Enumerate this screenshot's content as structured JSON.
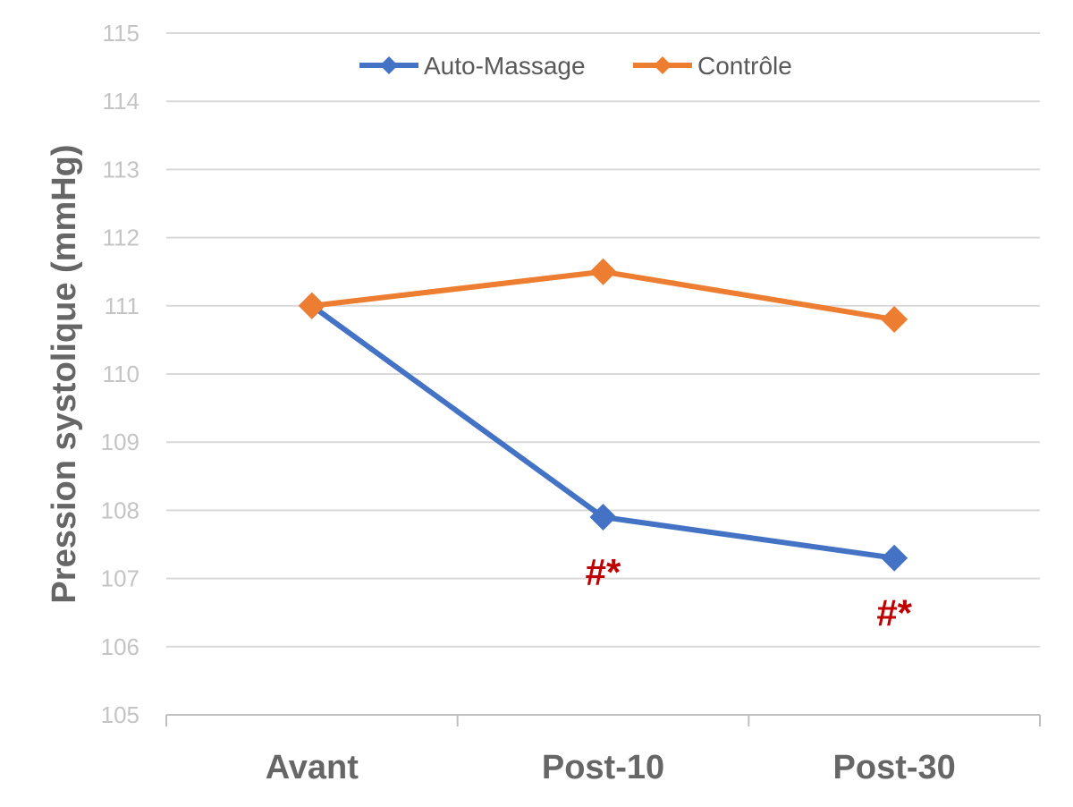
{
  "chart_data": {
    "type": "line",
    "categories": [
      "Avant",
      "Post-10",
      "Post-30"
    ],
    "ylabel": "Pression systolique (mmHg)",
    "ylim": [
      105,
      115
    ],
    "yticks": [
      105,
      106,
      107,
      108,
      109,
      110,
      111,
      112,
      113,
      114,
      115
    ],
    "grid": true,
    "legend_position": "top-center",
    "series": [
      {
        "name": "Auto-Massage",
        "color": "#4472c4",
        "values": [
          111,
          107.9,
          107.3
        ]
      },
      {
        "name": "Contrôle",
        "color": "#ed7d31",
        "values": [
          111,
          111.5,
          110.8
        ]
      }
    ],
    "annotations": [
      {
        "category": "Post-10",
        "series": "Auto-Massage",
        "text": "#*",
        "color": "#c00000"
      },
      {
        "category": "Post-30",
        "series": "Auto-Massage",
        "text": "#*",
        "color": "#c00000"
      }
    ]
  }
}
